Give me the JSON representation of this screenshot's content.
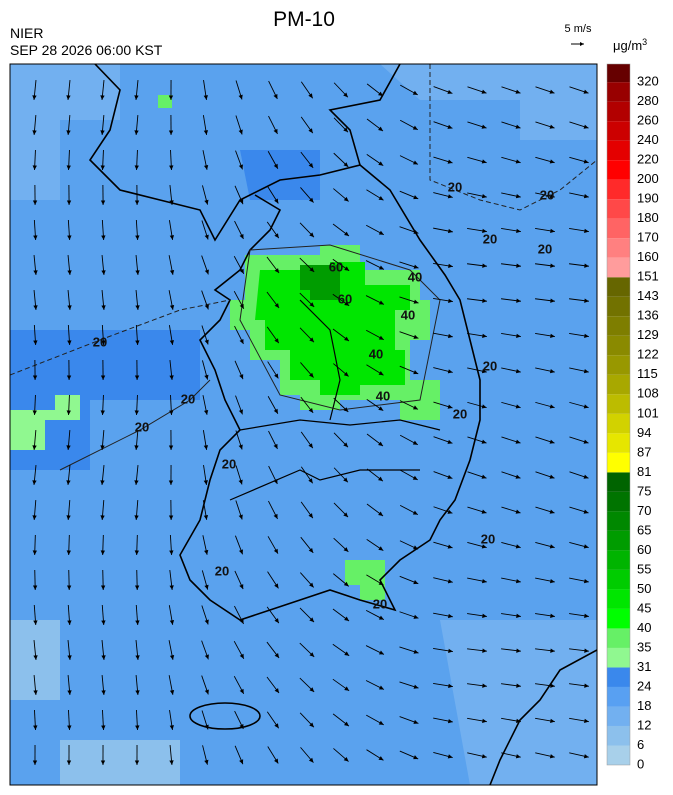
{
  "header": {
    "title": "PM-10",
    "org": "NIER",
    "datetime": "SEP 28 2026 06:00 KST",
    "scale_label": "5 m/s"
  },
  "colorbar": {
    "unit": "μg/m",
    "unit_power": "3",
    "labels": [
      0,
      6,
      12,
      18,
      24,
      31,
      35,
      40,
      45,
      50,
      55,
      60,
      65,
      70,
      75,
      81,
      87,
      94,
      101,
      108,
      115,
      122,
      129,
      136,
      143,
      151,
      160,
      170,
      180,
      190,
      200,
      220,
      240,
      260,
      280,
      320
    ],
    "colors": [
      "#a8d0ea",
      "#8cc0ec",
      "#72b0f0",
      "#58a0f2",
      "#3a88ec",
      "#90f890",
      "#66f066",
      "#00ff00",
      "#00e600",
      "#00cc00",
      "#00b400",
      "#009c00",
      "#008800",
      "#007400",
      "#006400",
      "#ffff00",
      "#e6e600",
      "#d2d200",
      "#bcbc00",
      "#a8a800",
      "#989800",
      "#8a8a00",
      "#7e7e00",
      "#727200",
      "#666600",
      "#ff9c9c",
      "#ff8080",
      "#ff6464",
      "#ff4848",
      "#ff2a2a",
      "#ff0000",
      "#e40000",
      "#cc0000",
      "#b20000",
      "#980000",
      "#660000"
    ]
  },
  "contours": {
    "labels": [
      "20",
      "20",
      "20",
      "20",
      "20",
      "20",
      "20",
      "20",
      "20",
      "20",
      "20",
      "20",
      "20",
      "40",
      "40",
      "40",
      "40",
      "60",
      "60"
    ]
  }
}
